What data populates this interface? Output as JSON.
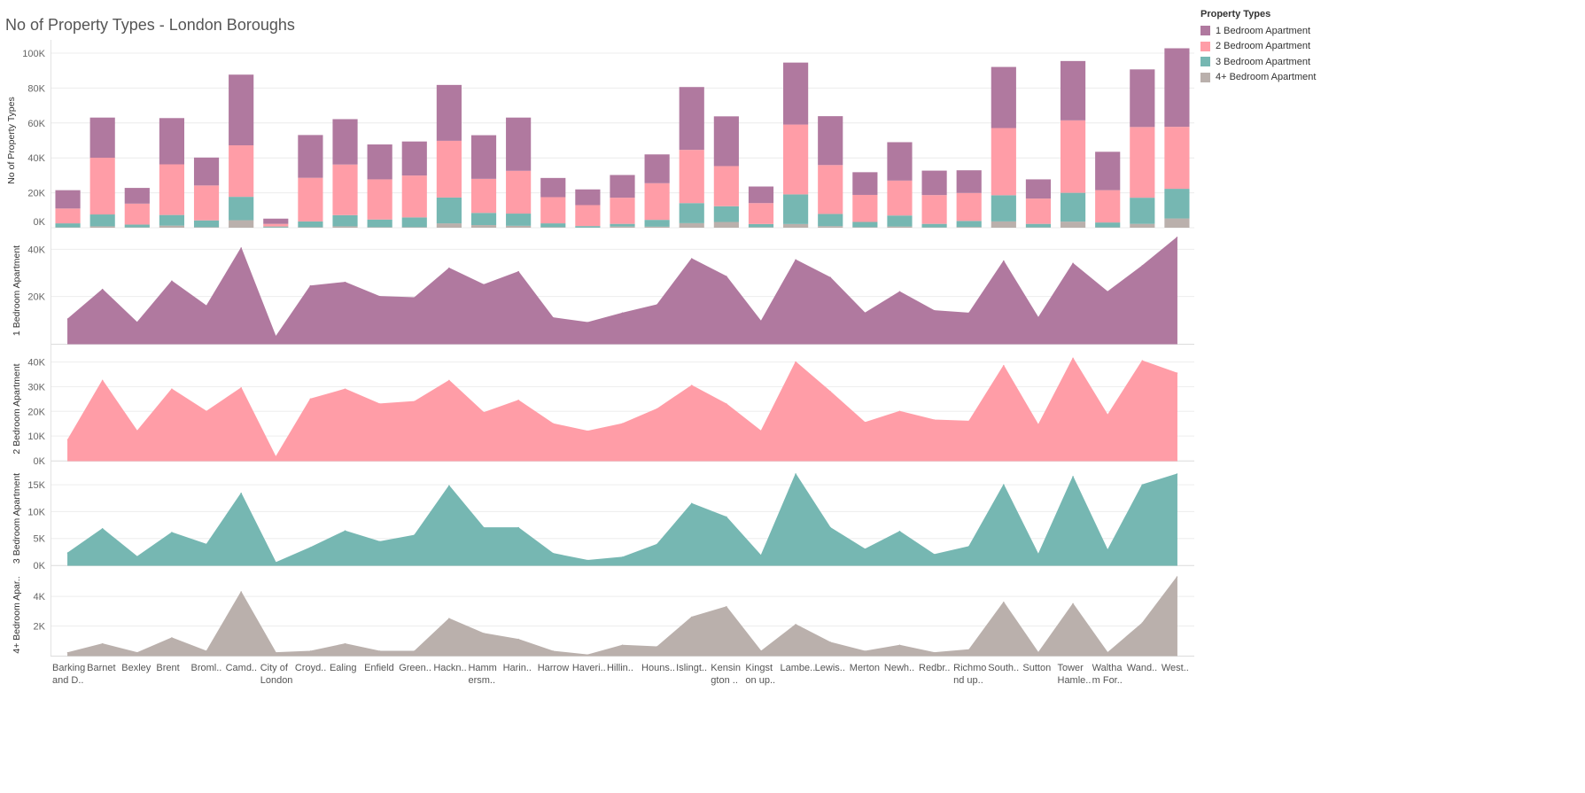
{
  "page": {
    "title": "No of Property Types - London Boroughs"
  },
  "legend": {
    "title": "Property Types",
    "items": [
      {
        "label": "1 Bedroom Apartment",
        "color": "#b0799f"
      },
      {
        "label": "2 Bedroom Apartment",
        "color": "#ff9da7"
      },
      {
        "label": "3 Bedroom Apartment",
        "color": "#76b7b2"
      },
      {
        "label": "4+ Bedroom Apartment",
        "color": "#bab0ac"
      }
    ]
  },
  "chart_data": [
    {
      "type": "bar",
      "stacked": true,
      "title": "No of Property Types - London Boroughs",
      "ylabel": "No of Property Types",
      "ylim": [
        0,
        100000
      ],
      "yticks": [
        "0K",
        "20K",
        "40K",
        "60K",
        "80K",
        "100K"
      ],
      "categories": [
        "Barking and D..",
        "Barnet",
        "Bexley",
        "Brent",
        "Broml..",
        "Camd..",
        "City of London",
        "Croyd..",
        "Ealing",
        "Enfield",
        "Green..",
        "Hackn..",
        "Hammersm..",
        "Harin..",
        "Harrow",
        "Haveri..",
        "Hillin..",
        "Houns..",
        "Islingt..",
        "Kensington ..",
        "Kingston up..",
        "Lambe..",
        "Lewis..",
        "Merton",
        "Newh..",
        "Redbr..",
        "Richmond up..",
        "South..",
        "Sutton",
        "Tower Hamle..",
        "Waltham For..",
        "Wand..",
        "West.."
      ],
      "series_order": [
        "4+ Bedroom Apartment",
        "3 Bedroom Apartment",
        "2 Bedroom Apartment",
        "1 Bedroom Apartment"
      ]
    },
    {
      "type": "area",
      "name": "1 Bedroom Apartment",
      "ylabel": "1 Bedroom Apartment",
      "ylim": [
        0,
        45000
      ],
      "yticks": [
        {
          "value": 20000,
          "label": "20K"
        },
        {
          "value": 40000,
          "label": "40K"
        }
      ],
      "values": [
        10500,
        23000,
        9000,
        26500,
        16000,
        40500,
        3000,
        24500,
        26000,
        20000,
        19500,
        32000,
        25000,
        30500,
        11000,
        9000,
        13000,
        16500,
        36000,
        28500,
        9500,
        35500,
        28000,
        13000,
        22000,
        14000,
        13000,
        35000,
        11000,
        34000,
        22000,
        33000,
        45000
      ]
    },
    {
      "type": "area",
      "name": "2 Bedroom Apartment",
      "ylabel": "2 Bedroom Apartment",
      "ylim": [
        0,
        42000
      ],
      "yticks": [
        {
          "value": 0,
          "label": "0K"
        },
        {
          "value": 10000,
          "label": "10K"
        },
        {
          "value": 20000,
          "label": "20K"
        },
        {
          "value": 30000,
          "label": "30K"
        },
        {
          "value": 40000,
          "label": "40K"
        }
      ],
      "values": [
        8500,
        32500,
        12000,
        29000,
        20000,
        29500,
        1500,
        25000,
        29000,
        23000,
        24000,
        32500,
        19500,
        24500,
        15000,
        12000,
        15000,
        21000,
        30500,
        23000,
        12000,
        40000,
        28000,
        15500,
        20000,
        16500,
        16000,
        38500,
        14500,
        41500,
        18500,
        40500,
        35500
      ]
    },
    {
      "type": "area",
      "name": "3 Bedroom Apartment",
      "ylabel": "3 Bedroom Apartment",
      "ylim": [
        0,
        17500
      ],
      "yticks": [
        {
          "value": 0,
          "label": "0K"
        },
        {
          "value": 5000,
          "label": "5K"
        },
        {
          "value": 10000,
          "label": "10K"
        },
        {
          "value": 15000,
          "label": "15K"
        }
      ],
      "values": [
        2300,
        6800,
        1600,
        6100,
        3900,
        13400,
        500,
        3300,
        6400,
        4400,
        5600,
        14800,
        7000,
        7000,
        2200,
        900,
        1500,
        3900,
        11500,
        9000,
        1800,
        17000,
        7000,
        3000,
        6300,
        2000,
        3500,
        15000,
        2000,
        16500,
        2800,
        15000,
        17000
      ]
    },
    {
      "type": "area",
      "name": "4+ Bedroom Apartment",
      "ylabel": "4+ Bedroom Apar..",
      "ylim": [
        0,
        5500
      ],
      "yticks": [
        {
          "value": 2000,
          "label": "2K"
        },
        {
          "value": 4000,
          "label": "4K"
        }
      ],
      "values": [
        200,
        800,
        200,
        1200,
        300,
        4300,
        200,
        300,
        800,
        300,
        300,
        2500,
        1500,
        1100,
        300,
        50,
        700,
        600,
        2600,
        3300,
        300,
        2100,
        900,
        300,
        700,
        200,
        400,
        3600,
        200,
        3500,
        200,
        2200,
        5300
      ]
    }
  ]
}
